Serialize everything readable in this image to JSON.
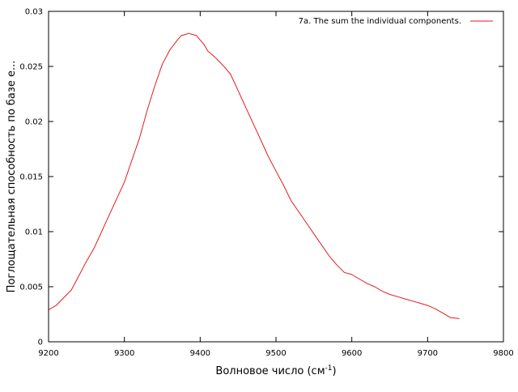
{
  "chart_data": {
    "type": "line",
    "title": "",
    "xlabel": "Волновое число (см",
    "xlabel_sup": "-1",
    "xlabel_tail": ")",
    "ylabel": "Поглощательная способность по базе e...",
    "xlim": [
      9200,
      9800
    ],
    "ylim": [
      0,
      0.03
    ],
    "x_ticks": [
      9200,
      9300,
      9400,
      9500,
      9600,
      9700,
      9800
    ],
    "x_tick_labels": [
      "9200",
      "9300",
      "9400",
      "9500",
      "9600",
      "9700",
      "9800"
    ],
    "y_ticks": [
      0,
      0.005,
      0.01,
      0.015,
      0.02,
      0.025,
      0.03
    ],
    "y_tick_labels": [
      "0",
      "0.005",
      "0.01",
      "0.015",
      "0.02",
      "0.025",
      "0.03"
    ],
    "grid": false,
    "legend_position": "top-right",
    "series": [
      {
        "name": "7a. The sum the individual components.",
        "color": "#e41a1c",
        "x": [
          9200,
          9210,
          9220,
          9230,
          9240,
          9250,
          9260,
          9270,
          9280,
          9290,
          9300,
          9310,
          9320,
          9330,
          9340,
          9350,
          9360,
          9370,
          9375,
          9380,
          9385,
          9390,
          9395,
          9400,
          9405,
          9410,
          9420,
          9430,
          9440,
          9450,
          9460,
          9470,
          9480,
          9490,
          9500,
          9510,
          9520,
          9530,
          9540,
          9550,
          9560,
          9570,
          9580,
          9590,
          9600,
          9610,
          9620,
          9630,
          9640,
          9650,
          9660,
          9670,
          9680,
          9690,
          9700,
          9710,
          9720,
          9730,
          9742
        ],
        "y": [
          0.0029,
          0.0033,
          0.004,
          0.0047,
          0.006,
          0.0073,
          0.0085,
          0.01,
          0.0115,
          0.013,
          0.0145,
          0.0165,
          0.0185,
          0.021,
          0.0232,
          0.0252,
          0.0265,
          0.0274,
          0.0278,
          0.0279,
          0.028,
          0.0279,
          0.0278,
          0.0274,
          0.027,
          0.0264,
          0.0258,
          0.0251,
          0.0243,
          0.0228,
          0.0213,
          0.0198,
          0.0183,
          0.0168,
          0.0155,
          0.0142,
          0.0128,
          0.0118,
          0.0108,
          0.0098,
          0.0088,
          0.0078,
          0.007,
          0.0063,
          0.0061,
          0.0057,
          0.0053,
          0.005,
          0.0046,
          0.0043,
          0.0041,
          0.0039,
          0.0037,
          0.0035,
          0.0033,
          0.003,
          0.0026,
          0.0022,
          0.0021
        ]
      }
    ]
  }
}
